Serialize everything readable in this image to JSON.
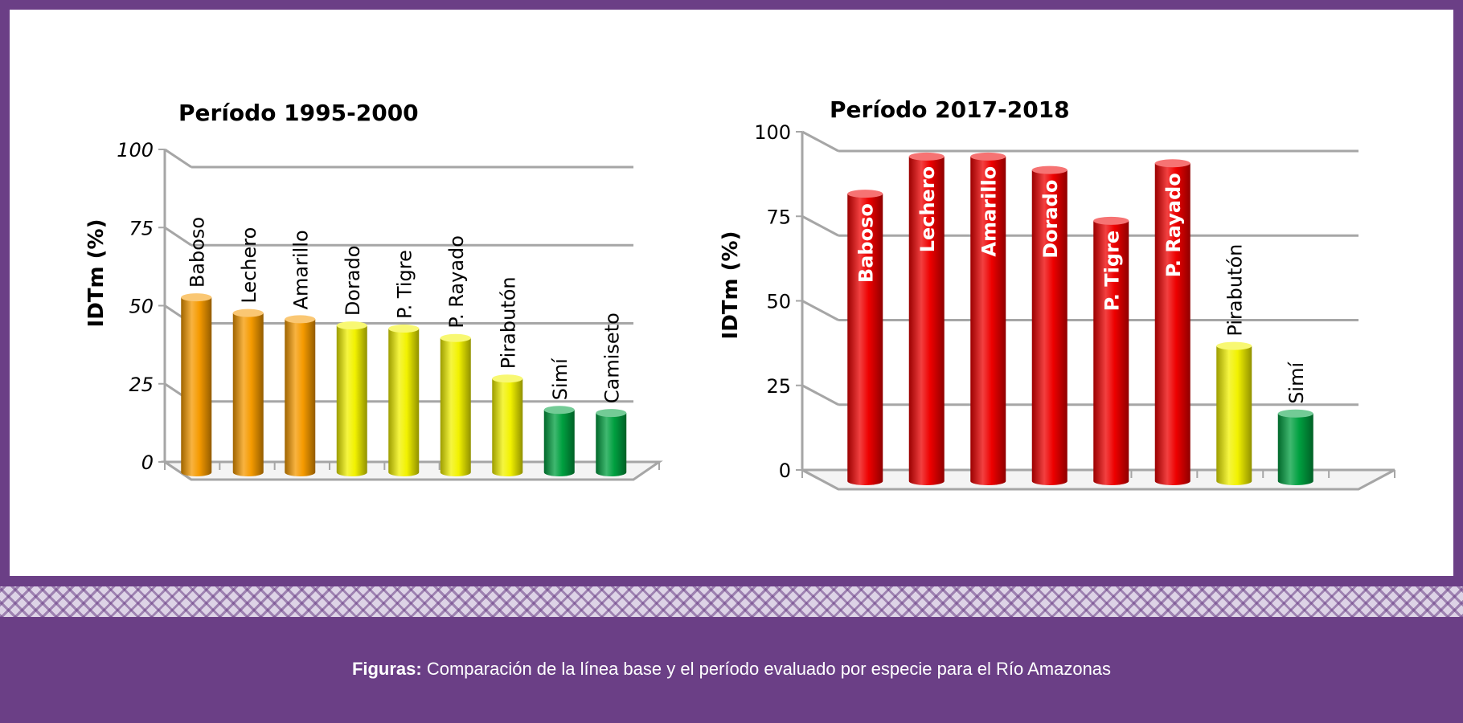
{
  "caption": {
    "bold": "Figuras:",
    "text": " Comparación de la línea base y el período evaluado por especie para el Río Amazonas"
  },
  "chart_data": [
    {
      "type": "bar",
      "title": "Período 1995-2000",
      "ylabel": "IDTm (%)",
      "xlabel": "",
      "ylim": [
        0,
        100
      ],
      "yticks": [
        "0",
        "25",
        "50",
        "75",
        "100"
      ],
      "grid": true,
      "categories": [
        "Baboso",
        "Lechero",
        "Amarillo",
        "Dorado",
        "P. Tigre",
        "P. Rayado",
        "Pirabutón",
        "Simí",
        "Camiseto"
      ],
      "values": [
        56,
        51,
        49,
        47,
        46,
        43,
        30,
        20,
        19
      ],
      "colors": [
        "#f59a00",
        "#f59a00",
        "#f59a00",
        "#f2f200",
        "#f2f200",
        "#f2f200",
        "#f2f200",
        "#00a040",
        "#00a040"
      ]
    },
    {
      "type": "bar",
      "title": "Período 2017-2018",
      "ylabel": "IDTm (%)",
      "xlabel": "",
      "ylim": [
        0,
        100
      ],
      "yticks": [
        "0",
        "25",
        "50",
        "75",
        "100"
      ],
      "grid": true,
      "categories": [
        "Baboso",
        "Lechero",
        "Amarillo",
        "Dorado",
        "P. Tigre",
        "P. Rayado",
        "Pirabutón",
        "Simí"
      ],
      "values": [
        85,
        96,
        96,
        92,
        77,
        94,
        40,
        20
      ],
      "colors": [
        "#ee0000",
        "#ee0000",
        "#ee0000",
        "#ee0000",
        "#ee0000",
        "#ee0000",
        "#f2f200",
        "#00a040"
      ]
    }
  ]
}
